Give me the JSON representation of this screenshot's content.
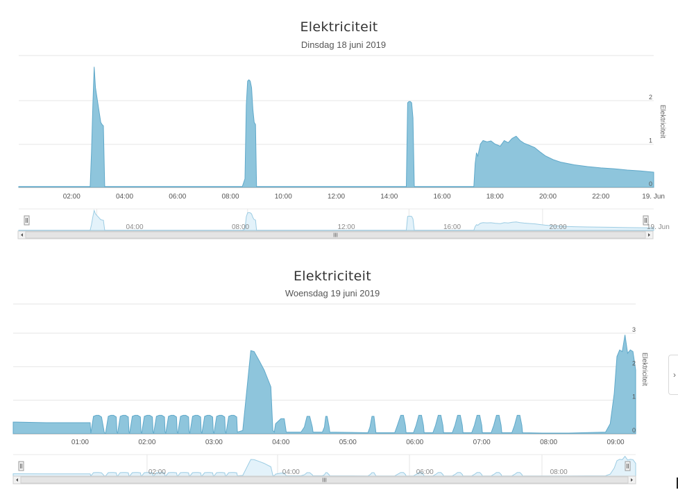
{
  "charts": [
    {
      "title": "Elektriciteit",
      "subtitle": "Dinsdag 18 juni 2019",
      "ylabel": "Elektriciteit",
      "x_tick_labels": [
        "02:00",
        "04:00",
        "06:00",
        "08:00",
        "10:00",
        "12:00",
        "14:00",
        "16:00",
        "18:00",
        "20:00",
        "22:00",
        "19. Jun"
      ],
      "y_tick_labels": [
        "0",
        "1",
        "2"
      ],
      "navigator_labels": [
        "04:00",
        "08:00",
        "12:00",
        "16:00",
        "20:00",
        "19. Jun"
      ],
      "scrollbar_grip": "III"
    },
    {
      "title": "Elektriciteit",
      "subtitle": "Woensdag 19 juni 2019",
      "ylabel": "Elektriciteit",
      "x_tick_labels": [
        "01:00",
        "02:00",
        "03:00",
        "04:00",
        "05:00",
        "06:00",
        "07:00",
        "08:00",
        "09:00"
      ],
      "y_tick_labels": [
        "0",
        "1",
        "2",
        "3"
      ],
      "navigator_labels": [
        "02:00",
        "04:00",
        "06:00",
        "08:00"
      ],
      "scrollbar_grip": "III"
    }
  ],
  "side_tab_icon": "chevron-right-icon",
  "side_tab_glyph": "›",
  "colors": {
    "area_fill": "#8ec5dc",
    "area_stroke": "#5fa8c9",
    "nav_fill": "#e3f2fa",
    "nav_stroke": "#9ccce3",
    "grid": "#e6e6e6"
  },
  "chart_data": [
    {
      "type": "area",
      "title": "Elektriciteit",
      "subtitle": "Dinsdag 18 juni 2019",
      "ylabel": "Elektriciteit",
      "x_unit": "hour of day (18 juni 2019)",
      "xlim": [
        0,
        24
      ],
      "ylim": [
        0,
        2.8
      ],
      "y_ticks": [
        0,
        1,
        2
      ],
      "grid": true,
      "legend": "none",
      "series": [
        {
          "x": [
            0,
            2.7,
            2.75,
            2.8,
            2.85,
            2.9,
            2.95,
            3.0,
            3.05,
            3.1,
            3.15,
            3.2,
            3.25,
            3.26,
            8.45,
            8.55,
            8.6,
            8.65,
            8.7,
            8.75,
            8.8,
            8.85,
            8.9,
            8.95,
            8.99,
            9.0,
            14.65,
            14.7,
            14.75,
            14.8,
            14.85,
            14.9,
            14.95,
            14.96,
            17.2,
            17.25,
            17.3,
            17.35,
            17.45,
            17.55,
            17.7,
            17.85,
            18.0,
            18.2,
            18.35,
            18.5,
            18.65,
            18.8,
            18.95,
            19.1,
            19.3,
            19.5,
            19.7,
            19.9,
            20.2,
            20.5,
            21.0,
            21.5,
            22.0,
            22.5,
            23.0,
            23.5,
            24.0
          ],
          "y": [
            0.02,
            0.02,
            0.8,
            1.9,
            2.78,
            2.3,
            2.1,
            1.9,
            1.7,
            1.5,
            1.45,
            1.42,
            0.02,
            0.02,
            0.02,
            0.2,
            1.9,
            2.45,
            2.48,
            2.45,
            2.3,
            1.8,
            1.5,
            1.45,
            0.02,
            0.02,
            0.02,
            1.95,
            1.98,
            1.98,
            1.95,
            1.6,
            0.03,
            0.02,
            0.02,
            0.55,
            0.8,
            0.72,
            1.0,
            1.08,
            1.05,
            1.07,
            1.0,
            0.95,
            1.08,
            1.03,
            1.13,
            1.18,
            1.08,
            1.02,
            0.97,
            0.92,
            0.82,
            0.73,
            0.64,
            0.58,
            0.52,
            0.48,
            0.45,
            0.43,
            0.4,
            0.38,
            0.35
          ]
        }
      ]
    },
    {
      "type": "area",
      "title": "Elektriciteit",
      "subtitle": "Woensdag 19 juni 2019",
      "ylabel": "Elektriciteit",
      "x_unit": "hour of day (19 juni 2019)",
      "xlim": [
        0.0,
        9.3
      ],
      "ylim": [
        0,
        3
      ],
      "y_ticks": [
        0,
        1,
        2,
        3
      ],
      "grid": true,
      "legend": "none",
      "series": [
        {
          "x": [
            0.0,
            0.05,
            0.5,
            1.15,
            1.16,
            1.2,
            1.24,
            1.28,
            1.32,
            1.36,
            1.37,
            1.38,
            1.42,
            1.46,
            1.5,
            1.54,
            1.55,
            1.56,
            1.6,
            1.64,
            1.68,
            1.72,
            1.73,
            1.74,
            1.78,
            1.82,
            1.86,
            1.9,
            1.91,
            1.92,
            1.96,
            2.0,
            2.04,
            2.08,
            2.09,
            2.1,
            2.14,
            2.18,
            2.22,
            2.26,
            2.27,
            2.28,
            2.32,
            2.36,
            2.4,
            2.44,
            2.45,
            2.46,
            2.5,
            2.54,
            2.58,
            2.62,
            2.63,
            2.64,
            2.68,
            2.72,
            2.76,
            2.8,
            2.81,
            2.82,
            2.86,
            2.9,
            2.94,
            2.98,
            2.99,
            3.0,
            3.04,
            3.08,
            3.12,
            3.16,
            3.17,
            3.18,
            3.22,
            3.26,
            3.3,
            3.34,
            3.35,
            3.43,
            3.5,
            3.55,
            3.6,
            3.67,
            3.75,
            3.85,
            3.88,
            3.9,
            3.92,
            4.0,
            4.05,
            4.08,
            4.3,
            4.35,
            4.39,
            4.43,
            4.47,
            4.48,
            4.62,
            4.65,
            4.67,
            4.69,
            4.72,
            4.73,
            5.3,
            5.33,
            5.36,
            5.39,
            5.41,
            5.42,
            5.7,
            5.74,
            5.79,
            5.83,
            5.86,
            5.87,
            5.98,
            6.02,
            6.06,
            6.1,
            6.13,
            6.14,
            6.27,
            6.31,
            6.35,
            6.39,
            6.42,
            6.43,
            6.56,
            6.6,
            6.64,
            6.68,
            6.71,
            6.72,
            6.85,
            6.89,
            6.93,
            6.97,
            7.0,
            7.01,
            7.14,
            7.18,
            7.22,
            7.26,
            7.29,
            7.3,
            7.45,
            7.49,
            7.53,
            7.57,
            7.6,
            7.61,
            7.9,
            8.3,
            8.85,
            8.92,
            8.98,
            9.02,
            9.06,
            9.1,
            9.14,
            9.18,
            9.22,
            9.26,
            9.3
          ],
          "y": [
            0.35,
            0.35,
            0.33,
            0.33,
            0.02,
            0.52,
            0.55,
            0.55,
            0.5,
            0.05,
            0.02,
            0.02,
            0.52,
            0.55,
            0.55,
            0.5,
            0.05,
            0.02,
            0.52,
            0.55,
            0.55,
            0.5,
            0.05,
            0.02,
            0.52,
            0.55,
            0.55,
            0.5,
            0.05,
            0.02,
            0.52,
            0.55,
            0.55,
            0.5,
            0.05,
            0.02,
            0.52,
            0.55,
            0.55,
            0.5,
            0.05,
            0.02,
            0.52,
            0.55,
            0.55,
            0.5,
            0.05,
            0.02,
            0.52,
            0.55,
            0.55,
            0.5,
            0.05,
            0.02,
            0.52,
            0.55,
            0.55,
            0.5,
            0.05,
            0.02,
            0.52,
            0.55,
            0.55,
            0.5,
            0.05,
            0.02,
            0.52,
            0.55,
            0.55,
            0.5,
            0.05,
            0.02,
            0.52,
            0.55,
            0.55,
            0.5,
            0.05,
            0.1,
            1.5,
            2.48,
            2.45,
            2.2,
            1.9,
            1.4,
            0.1,
            0.05,
            0.3,
            0.45,
            0.45,
            0.05,
            0.05,
            0.2,
            0.52,
            0.52,
            0.2,
            0.05,
            0.05,
            0.2,
            0.52,
            0.52,
            0.2,
            0.05,
            0.03,
            0.2,
            0.52,
            0.52,
            0.2,
            0.03,
            0.03,
            0.25,
            0.55,
            0.55,
            0.25,
            0.03,
            0.03,
            0.25,
            0.55,
            0.55,
            0.25,
            0.03,
            0.03,
            0.25,
            0.55,
            0.55,
            0.25,
            0.03,
            0.03,
            0.25,
            0.55,
            0.55,
            0.25,
            0.03,
            0.03,
            0.25,
            0.55,
            0.55,
            0.25,
            0.03,
            0.03,
            0.25,
            0.55,
            0.55,
            0.25,
            0.03,
            0.03,
            0.25,
            0.55,
            0.55,
            0.25,
            0.03,
            0.02,
            0.02,
            0.05,
            0.3,
            1.2,
            2.3,
            2.5,
            2.45,
            2.95,
            2.4,
            2.5,
            2.45,
            1.9
          ]
        }
      ]
    }
  ]
}
